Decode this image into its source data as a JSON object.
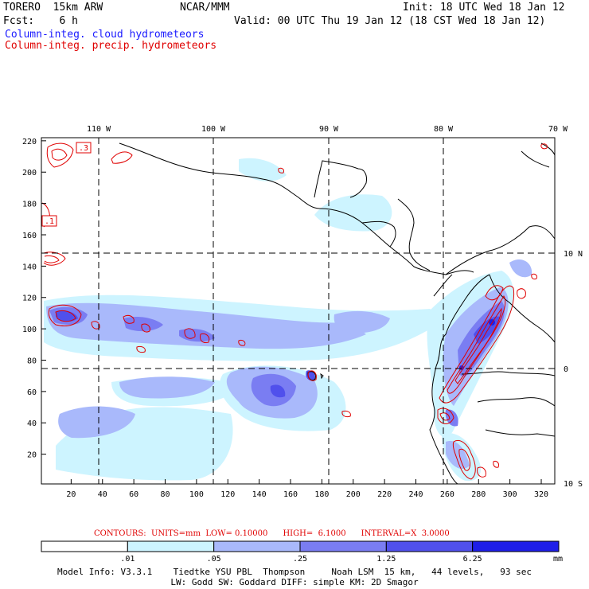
{
  "header": {
    "model": "TORERO  15km ARW",
    "org": "NCAR/MMM",
    "init": "Init: 18 UTC Wed 18 Jan 12",
    "fcst": "Fcst:    6 h",
    "valid": "Valid: 00 UTC Thu 19 Jan 12 (18 CST Wed 18 Jan 12)",
    "legend_cloud": "Column-integ. cloud hydrometeors",
    "legend_precip": "Column-integ. precip. hydrometeors"
  },
  "colors": {
    "cloud_legend": "#1a1aff",
    "precip": "#e00000",
    "shade_levels": [
      "#ffffff",
      "#cdf4ff",
      "#a9b9fb",
      "#7a7df2",
      "#5050ec",
      "#1e1ee8"
    ]
  },
  "map": {
    "lon_labels": [
      "110 W",
      "100 W",
      "90 W",
      "80 W",
      "70 W"
    ],
    "lat_labels": [
      "10 N",
      "0",
      "10 S"
    ],
    "x_ticks": [
      "20",
      "40",
      "60",
      "80",
      "100",
      "120",
      "140",
      "160",
      "180",
      "200",
      "220",
      "240",
      "260",
      "280",
      "300",
      "320"
    ],
    "y_ticks": [
      "20",
      "40",
      "60",
      "80",
      "100",
      "120",
      "140",
      "160",
      "180",
      "200",
      "220"
    ],
    "contour_labels": [
      ".3",
      ".1"
    ]
  },
  "contours_info": {
    "label": "CONTOURS:  UNITS=mm  LOW= 0.10000      HIGH=  6.1000      INTERVAL=X  3.0000"
  },
  "colorbar": {
    "ticks": [
      ".01",
      ".05",
      ".25",
      "1.25",
      "6.25"
    ],
    "unit": "mm"
  },
  "footer": {
    "line1": "Model Info: V3.3.1    Tiedtke YSU PBL  Thompson     Noah LSM  15 km,   44 levels,   93 sec",
    "line2": "LW: Godd SW: Goddard DIFF: simple KM: 2D Smagor"
  }
}
